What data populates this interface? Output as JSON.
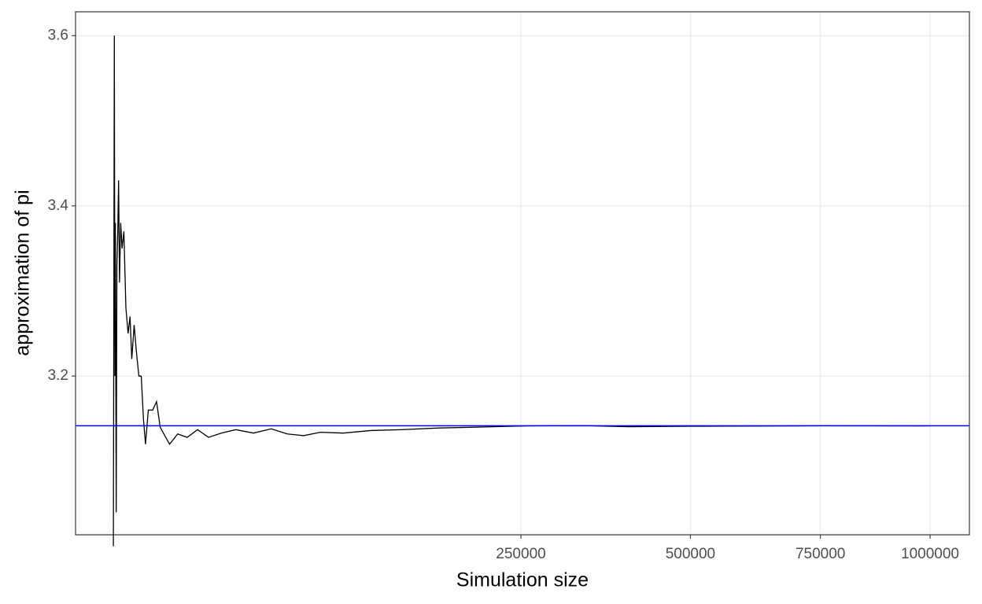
{
  "chart_data": {
    "type": "line",
    "x_label": "Simulation size",
    "y_label": "approximation of pi",
    "x_scale": "sqrt",
    "xlim": [
      0,
      1000000
    ],
    "xticks": [
      250000,
      500000,
      750000,
      1000000
    ],
    "ylim": [
      3.0135,
      3.628
    ],
    "yticks": [
      3.2,
      3.4,
      3.6
    ],
    "grid": true,
    "x": [
      4,
      10,
      15,
      20,
      30,
      40,
      55,
      70,
      90,
      120,
      160,
      220,
      300,
      400,
      500,
      600,
      750,
      900,
      1100,
      1300,
      1500,
      1700,
      2000,
      2500,
      3000,
      3500,
      4200,
      5000,
      6500,
      8500,
      11000,
      14000,
      18000,
      23000,
      30000,
      38000,
      46000,
      55000,
      65000,
      80000,
      100000,
      125000,
      160000,
      200000,
      260000,
      330000,
      400000,
      500000,
      620000,
      750000,
      1000000
    ],
    "series": [
      {
        "color": "#000000",
        "values": [
          3.0,
          3.6,
          3.2,
          3.38,
          3.04,
          3.33,
          3.37,
          3.43,
          3.31,
          3.38,
          3.35,
          3.37,
          3.28,
          3.25,
          3.27,
          3.22,
          3.26,
          3.23,
          3.2,
          3.2,
          3.15,
          3.12,
          3.16,
          3.16,
          3.17,
          3.14,
          3.13,
          3.12,
          3.132,
          3.128,
          3.137,
          3.128,
          3.133,
          3.137,
          3.133,
          3.138,
          3.132,
          3.13,
          3.134,
          3.133,
          3.136,
          3.137,
          3.139,
          3.14,
          3.1415,
          3.1418,
          3.1405,
          3.141,
          3.1413,
          3.1416,
          3.1415
        ]
      }
    ],
    "hline": {
      "value": 3.14159,
      "color": "#0000ff"
    }
  }
}
